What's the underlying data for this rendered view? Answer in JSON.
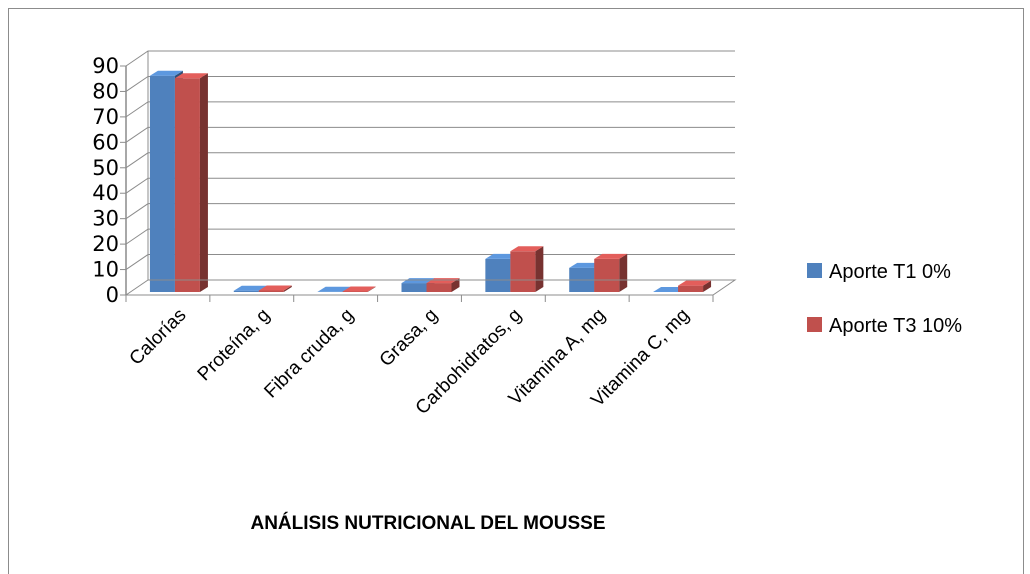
{
  "chart_data": {
    "type": "bar",
    "title": "ANÁLISIS  NUTRICIONAL DEL MOUSSE",
    "categories": [
      "Calorías",
      "Proteína, g",
      "Fibra cruda, g",
      "Grasa, g",
      "Carbohidratos, g",
      "Vitamina A, mg",
      "Vitamina C, mg"
    ],
    "series": [
      {
        "name": "Aporte T1  0%",
        "color": "#4f81bd",
        "values": [
          85,
          0.5,
          0.1,
          3.5,
          13,
          9.5,
          0
        ]
      },
      {
        "name": "Aporte T3  10%",
        "color": "#c0504d",
        "values": [
          84,
          0.6,
          0.2,
          3.5,
          16,
          13,
          2.5
        ]
      }
    ],
    "yticks": [
      "0",
      "10",
      "20",
      "30",
      "40",
      "50",
      "60",
      "70",
      "80",
      "90"
    ],
    "ylim": [
      0,
      90
    ],
    "grid": true,
    "legend_position": "right",
    "three_d": true
  }
}
